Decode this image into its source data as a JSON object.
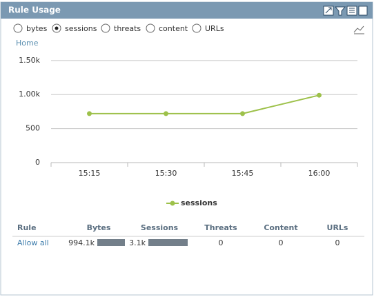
{
  "widget": {
    "title": "Rule Usage",
    "options": [
      {
        "label": "bytes",
        "checked": false
      },
      {
        "label": "sessions",
        "checked": true
      },
      {
        "label": "threats",
        "checked": false
      },
      {
        "label": "content",
        "checked": false
      },
      {
        "label": "URLs",
        "checked": false
      }
    ],
    "breadcrumb": "Home"
  },
  "chart_data": {
    "type": "line",
    "categories": [
      "15:15",
      "15:30",
      "15:45",
      "16:00"
    ],
    "series": [
      {
        "name": "sessions",
        "color": "#9dc14a",
        "values": [
          720,
          720,
          720,
          990
        ]
      }
    ],
    "ylim": [
      0,
      1650
    ],
    "yticks": [
      0,
      500,
      {
        "value": 1000,
        "label": "1.00k"
      },
      {
        "value": 1500,
        "label": "1.50k"
      }
    ],
    "grid": true,
    "legend": "bottom"
  },
  "table": {
    "columns": [
      "Rule",
      "Bytes",
      "Sessions",
      "Threats",
      "Content",
      "URLs"
    ],
    "rows": [
      [
        "Allow all",
        "994.1k",
        "3.1k",
        "0",
        "0",
        "0"
      ]
    ]
  }
}
